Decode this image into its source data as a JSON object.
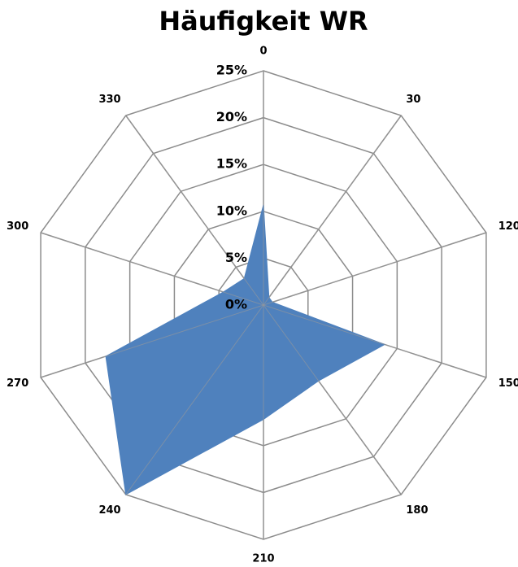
{
  "chart_data": {
    "type": "radar",
    "title": "Häufigkeit WR",
    "categories": [
      "0",
      "30",
      "120",
      "150",
      "180",
      "210",
      "240",
      "270",
      "300",
      "330"
    ],
    "series": [
      {
        "color": "#4f81bd",
        "values": [
          10.7,
          1,
          1,
          13.6,
          10,
          12.2,
          25,
          17.7,
          4.5,
          3.5
        ]
      }
    ],
    "ylim": [
      0,
      25
    ],
    "yticks": [
      {
        "value": 0,
        "label": "0%"
      },
      {
        "value": 5,
        "label": "5%"
      },
      {
        "value": 10,
        "label": "10%"
      },
      {
        "value": 15,
        "label": "15%"
      },
      {
        "value": 20,
        "label": "20%"
      },
      {
        "value": 25,
        "label": "25%"
      }
    ],
    "grid": true
  }
}
